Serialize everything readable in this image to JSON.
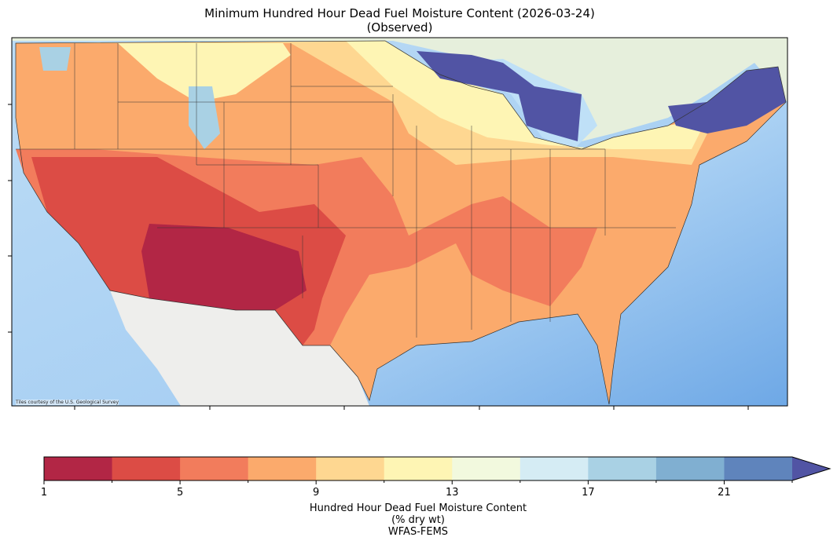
{
  "title_line1": "Minimum Hundred Hour Dead Fuel Moisture Content (2026-03-24)",
  "title_line2": "(Observed)",
  "attribution": "Tiles courtesy of the U.S. Geological Survey",
  "chart_data": {
    "type": "heatmap",
    "title": "Minimum Hundred Hour Dead Fuel Moisture Content (2026-03-24) (Observed)",
    "colorbar": {
      "label_lines": [
        "Hundred Hour Dead Fuel Moisture Content",
        "(% dry wt)",
        "WFAS-FEMS"
      ],
      "boundaries": [
        1,
        3,
        5,
        7,
        9,
        11,
        13,
        15,
        17,
        19,
        21,
        23
      ],
      "tick_labels": [
        "1",
        "5",
        "9",
        "13",
        "17",
        "21"
      ],
      "tick_values": [
        1,
        5,
        9,
        13,
        17,
        21
      ],
      "colors": [
        "#b22645",
        "#dc4c45",
        "#f27c5c",
        "#fbaa6c",
        "#fed791",
        "#fef5b4",
        "#f2f9de",
        "#d5ecf4",
        "#a9d1e4",
        "#80afd1",
        "#5f84bc"
      ],
      "extend": "max",
      "extend_color": "#5154a4"
    },
    "regions_description_colors": {
      "ocean": "#a8d0f0",
      "land": "#eeeeee",
      "canada": "#e6efdc"
    }
  }
}
